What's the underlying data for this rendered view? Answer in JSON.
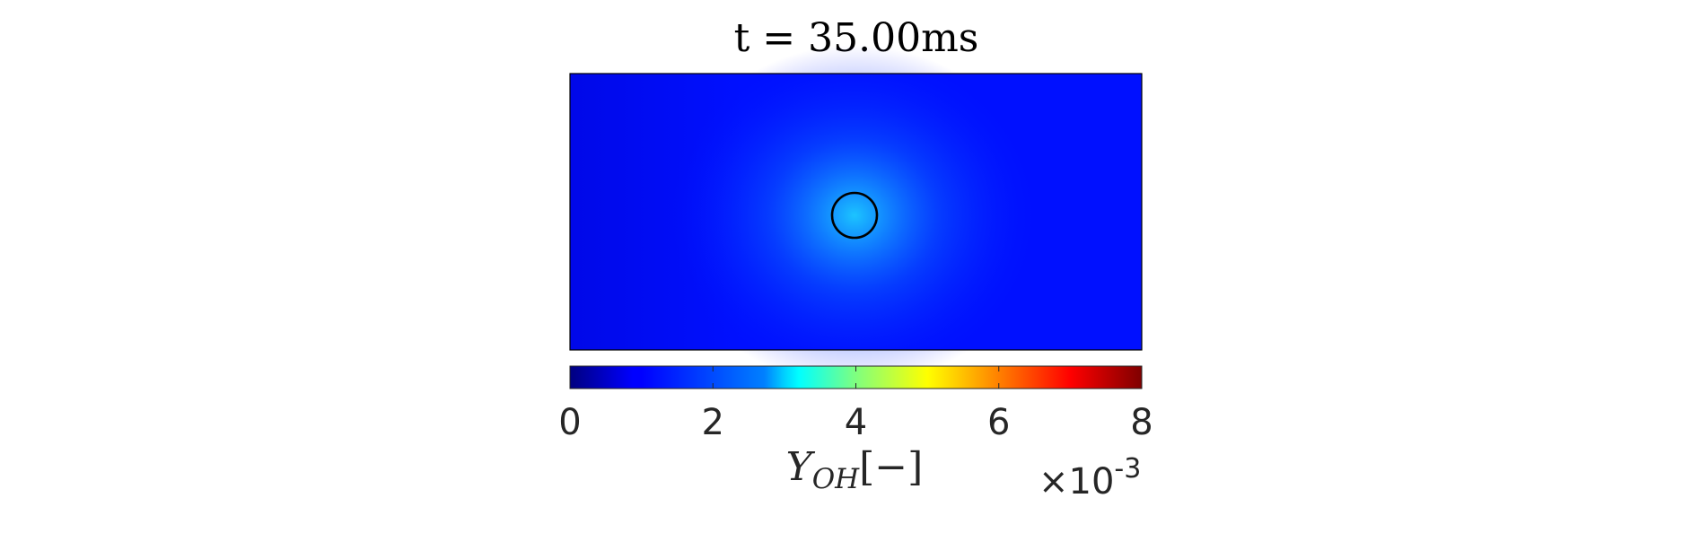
{
  "chart_data": {
    "type": "heatmap",
    "title": "t = 35.00ms",
    "colormap": "jet",
    "colors": {
      "field_background": "#0010ff",
      "field_edge_left": "#0008e8",
      "flame_core": "#1cc4ff",
      "flame_halo": "#0a60ff",
      "contour": "#000000"
    },
    "field": {
      "background_value": 0.0011,
      "peak_value": 0.0033
    },
    "contour": {
      "shape": "circle",
      "stroke": "black"
    },
    "colorbar": {
      "orientation": "horizontal",
      "placement": "bottom",
      "range": [
        0,
        0.008
      ],
      "ticks": [
        0,
        2,
        4,
        6,
        8
      ],
      "tick_labels": [
        "0",
        "2",
        "4",
        "6",
        "8"
      ],
      "label_main": "Y",
      "label_sub": "OH",
      "label_unit": "[−]",
      "multiplier_prefix": "×10",
      "multiplier_exponent": "-3"
    }
  }
}
